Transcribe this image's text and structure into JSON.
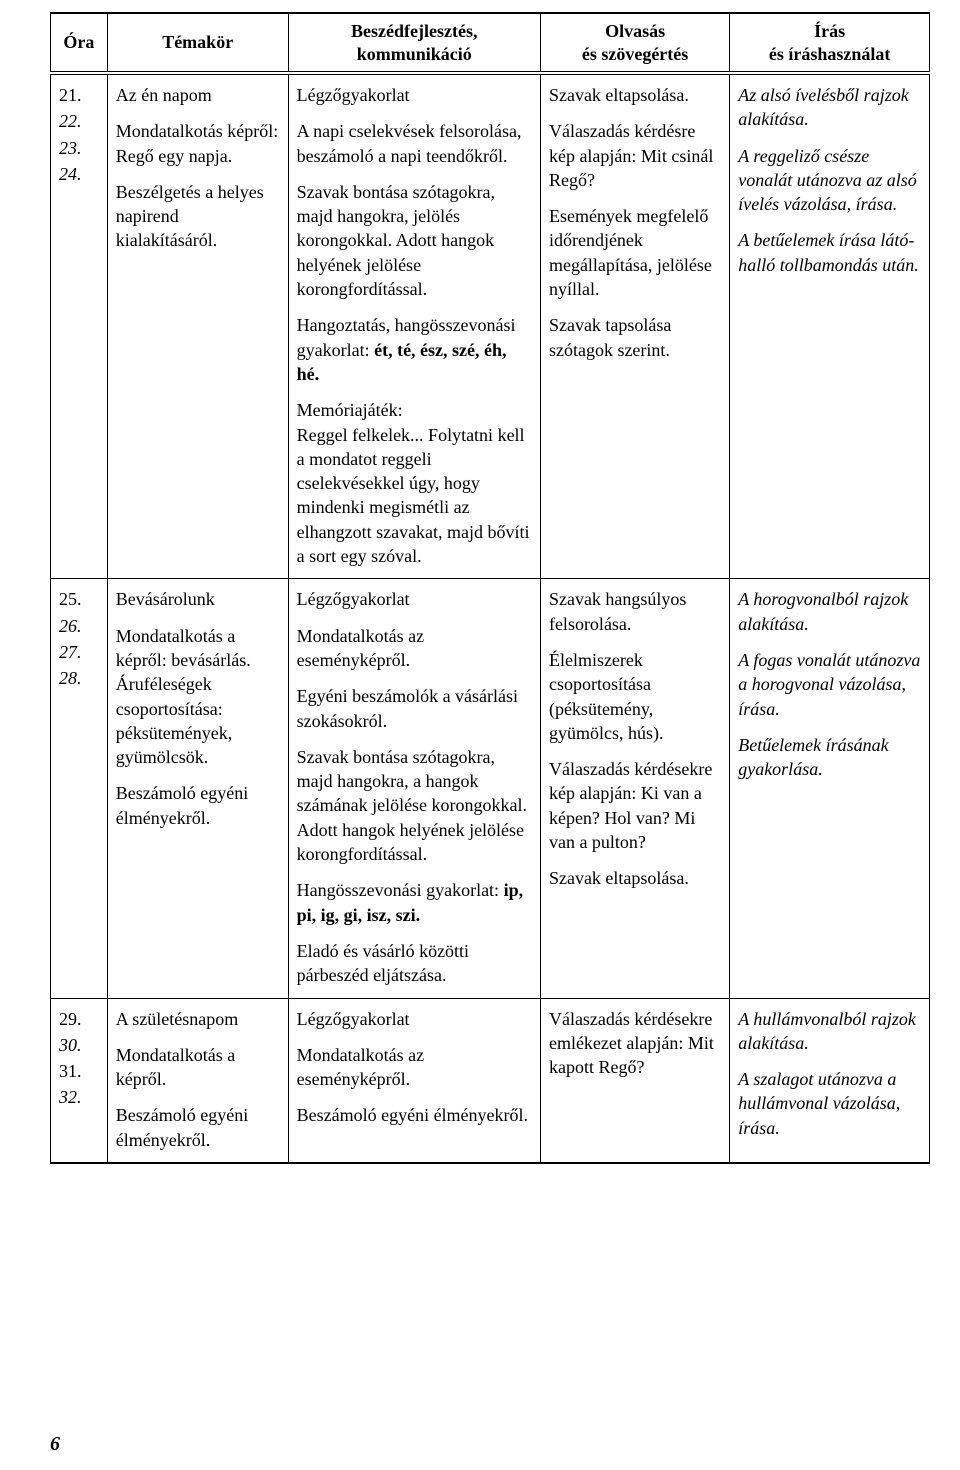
{
  "headers": {
    "ora": "Óra",
    "temakor": "Témakör",
    "beszed": "Beszédfejlesztés,\nkommunikáció",
    "olvasas": "Olvasás\nés szövegértés",
    "iras": "Írás\nés íráshasználat"
  },
  "rows": [
    {
      "ora": [
        "21.",
        "22.",
        "23.",
        "24."
      ],
      "ora_italic": [
        false,
        true,
        true,
        true
      ],
      "temakor": [
        {
          "text": "Az én napom",
          "italic": false
        },
        {
          "text": "Mondatalkotás képről: Regő egy napja.",
          "italic": false
        },
        {
          "text": "Beszélgetés a helyes napirend kialakításáról.",
          "italic": false
        }
      ],
      "beszed": [
        {
          "text": "Légzőgyakorlat",
          "italic": false
        },
        {
          "text": "A napi cselekvések felsorolása, beszámoló a napi teendőkről.",
          "italic": false
        },
        {
          "text": "Szavak bontása szótagokra, majd hangokra, jelölés korongokkal. Adott hangok helyének jelölése korongfordítással.",
          "italic": false
        },
        {
          "pre": "Hangoztatás, hangösszevonási gyakorlat: ",
          "bold": "ét, té, ész, szé, éh, hé.",
          "italic": false
        },
        {
          "text": "Memóriajáték:\nReggel felkelek... Folytatni kell a mondatot reggeli cselekvésekkel úgy, hogy mindenki megismétli az elhangzott szavakat, majd bővíti a sort egy szóval.",
          "italic": false
        }
      ],
      "olvasas": [
        {
          "text": "Szavak eltapsolása.",
          "italic": false
        },
        {
          "text": "Válaszadás kérdésre kép alapján: Mit csinál Regő?",
          "italic": false
        },
        {
          "text": "Események megfelelő időrendjének megállapítása, jelölése nyíllal.",
          "italic": false
        },
        {
          "text": "Szavak tapsolása szótagok szerint.",
          "italic": false
        }
      ],
      "iras": [
        {
          "text": "Az alsó ívelésből rajzok alakítása.",
          "italic": true
        },
        {
          "text": "A reggeliző csésze vonalát utánozva az alsó ívelés vázolása, írása.",
          "italic": true
        },
        {
          "text": "A betűelemek írása látó-halló tollbamondás után.",
          "italic": true
        }
      ]
    },
    {
      "ora": [
        "25.",
        "26.",
        "27.",
        "28."
      ],
      "ora_italic": [
        false,
        true,
        true,
        true
      ],
      "temakor": [
        {
          "text": "Bevásárolunk",
          "italic": false
        },
        {
          "text": "Mondatalkotás a képről: bevásárlás. Áruféleségek csoportosítása: péksütemények, gyümölcsök.",
          "italic": false
        },
        {
          "text": "Beszámoló egyéni élményekről.",
          "italic": false
        }
      ],
      "beszed": [
        {
          "text": "Légzőgyakorlat",
          "italic": false
        },
        {
          "text": "Mondatalkotás az eseményképről.",
          "italic": false
        },
        {
          "text": "Egyéni beszámolók a vásárlási szokásokról.",
          "italic": false
        },
        {
          "text": "Szavak bontása szótagokra, majd hangokra, a hangok számának jelölése korongokkal. Adott hangok helyének jelölése korongfordítással.",
          "italic": false
        },
        {
          "pre": "Hangösszevonási gyakorlat: ",
          "bold": "ip, pi, ig, gi, isz, szi.",
          "italic": false
        },
        {
          "text": "Eladó és vásárló közötti párbeszéd eljátszása.",
          "italic": false
        }
      ],
      "olvasas": [
        {
          "text": "Szavak hangsúlyos felsorolása.",
          "italic": false
        },
        {
          "text": "Élelmiszerek csoportosítása (péksütemény, gyümölcs, hús).",
          "italic": false
        },
        {
          "text": "Válaszadás kérdésekre kép alapján: Ki van a képen? Hol van? Mi van a pulton?",
          "italic": false
        },
        {
          "text": "Szavak eltapsolása.",
          "italic": false
        }
      ],
      "iras": [
        {
          "text": "A horogvonalból rajzok alakítása.",
          "italic": true
        },
        {
          "text": "A fogas vonalát utánozva a horogvonal vázolása, írása.",
          "italic": true
        },
        {
          "text": "Betűelemek írásának gyakorlása.",
          "italic": true
        }
      ]
    },
    {
      "ora": [
        "29.",
        "30.",
        "31.",
        "32."
      ],
      "ora_italic": [
        false,
        true,
        false,
        true
      ],
      "temakor": [
        {
          "text": "A születésnapom",
          "italic": false
        },
        {
          "text": "Mondatalkotás a képről.",
          "italic": false
        },
        {
          "text": "Beszámoló egyéni élményekről.",
          "italic": false
        }
      ],
      "beszed": [
        {
          "text": "Légzőgyakorlat",
          "italic": false
        },
        {
          "text": "Mondatalkotás az eseményképről.",
          "italic": false
        },
        {
          "text": "Beszámoló egyéni élményekről.",
          "italic": false
        }
      ],
      "olvasas": [
        {
          "text": "Válaszadás kérdésekre emlékezet alapján: Mit kapott Regő?",
          "italic": false
        }
      ],
      "iras": [
        {
          "text": "A hullámvonalból rajzok alakítása.",
          "italic": true
        },
        {
          "text": "A szalagot utánozva a hullámvonal vázolása, írása.",
          "italic": true
        }
      ]
    }
  ],
  "page_number": "6"
}
